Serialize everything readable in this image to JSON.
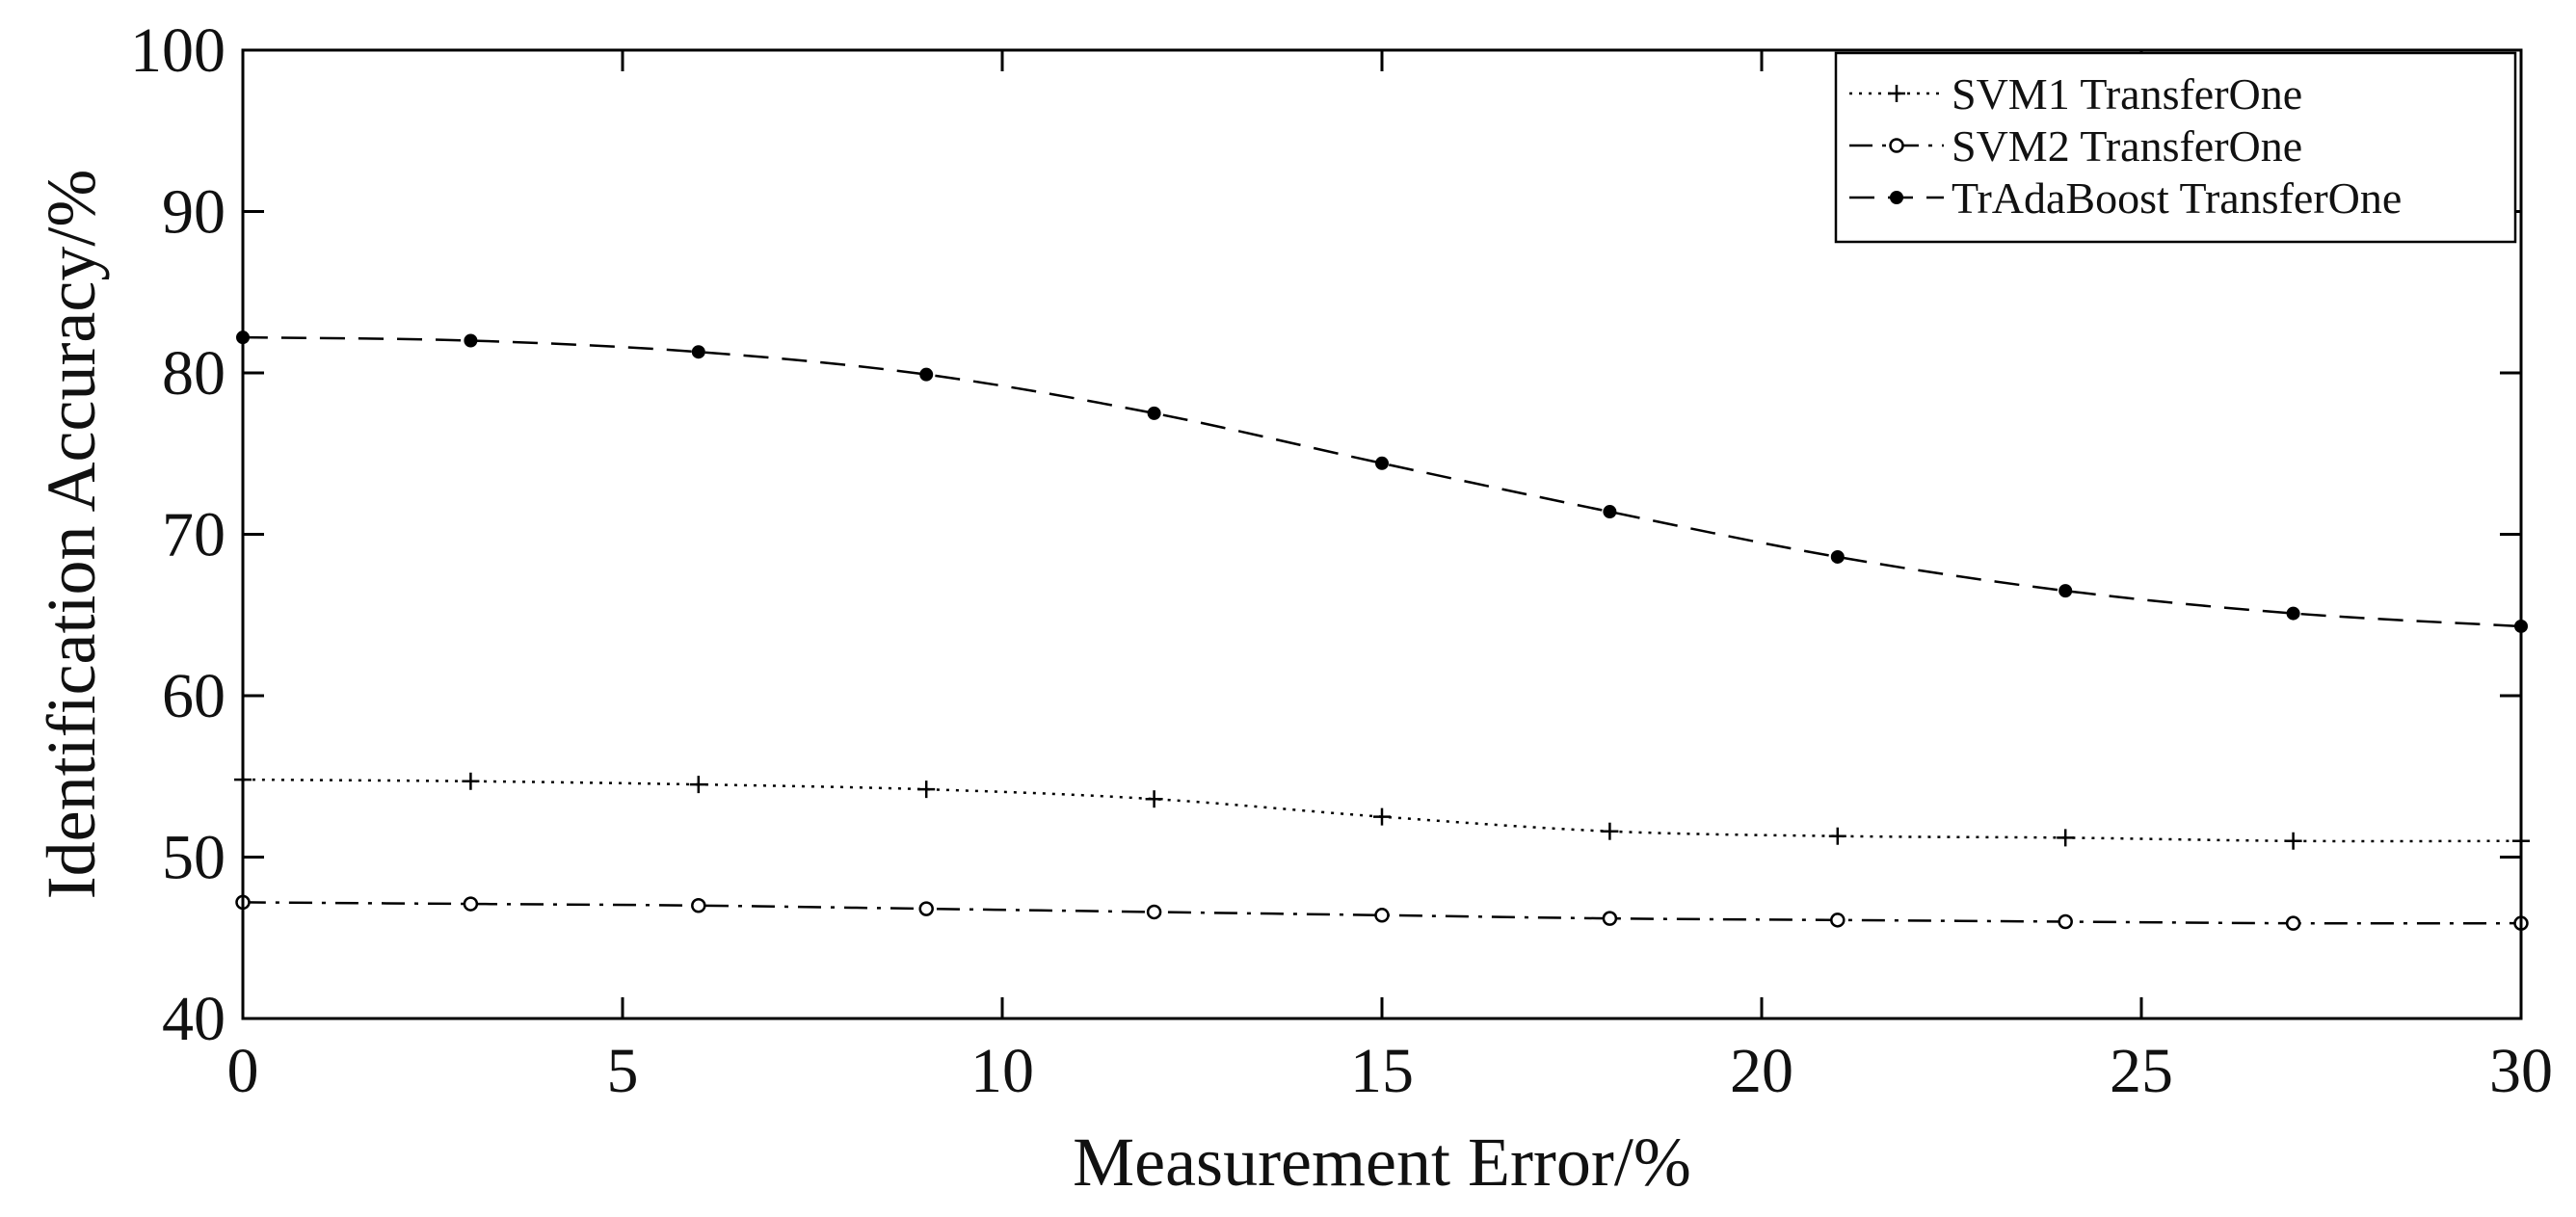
{
  "chart_data": {
    "type": "line",
    "xlabel": "Measurement Error/%",
    "ylabel": "Identification Accuracy/%",
    "xlim": [
      0,
      30
    ],
    "ylim": [
      40,
      100
    ],
    "xticks": [
      0,
      5,
      10,
      15,
      20,
      25,
      30
    ],
    "yticks": [
      40,
      50,
      60,
      70,
      80,
      90,
      100
    ],
    "x": [
      0,
      3,
      6,
      9,
      12,
      15,
      18,
      21,
      24,
      27,
      30
    ],
    "series": [
      {
        "name": "SVM1 TransferOne",
        "line_style": "dotted",
        "marker": "plus",
        "values": [
          54.8,
          54.7,
          54.5,
          54.2,
          53.6,
          52.5,
          51.6,
          51.3,
          51.2,
          51.0,
          51.0
        ]
      },
      {
        "name": "SVM2 TransferOne",
        "line_style": "dash-dot",
        "marker": "open-circle",
        "values": [
          47.2,
          47.1,
          47.0,
          46.8,
          46.6,
          46.4,
          46.2,
          46.1,
          46.0,
          45.9,
          45.9
        ]
      },
      {
        "name": "TrAdaBoost TransferOne",
        "line_style": "dashed",
        "marker": "dot",
        "values": [
          82.2,
          82.0,
          81.3,
          79.9,
          77.5,
          74.4,
          71.4,
          68.6,
          66.5,
          65.1,
          64.3
        ]
      }
    ],
    "legend_position": "top-right",
    "grid": false,
    "colors": {
      "line": "#000000",
      "axes": "#000000",
      "background": "#ffffff"
    }
  }
}
